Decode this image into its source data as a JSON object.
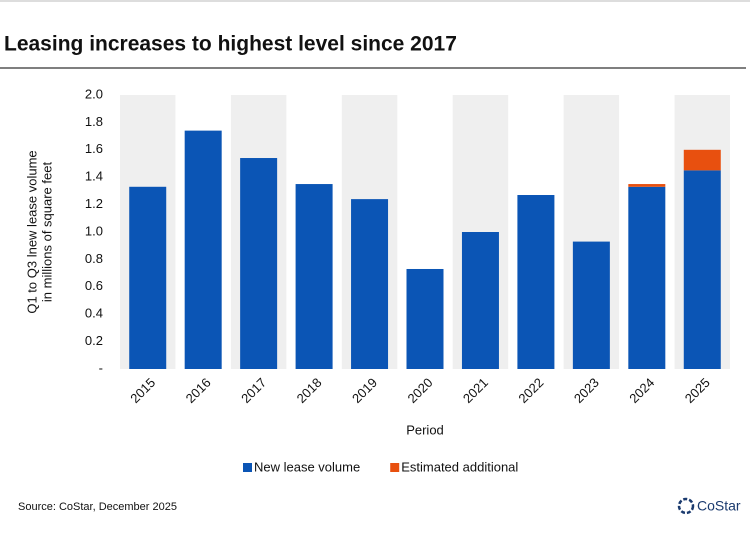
{
  "chart_data": {
    "type": "stacked_bar",
    "title": "Leasing increases to highest level since 2017",
    "y_label": [
      "Q1 to Q3 lnew lease volume",
      "in millions of square feet"
    ],
    "x_label": "Period",
    "source": "Source: CoStar, December 2025",
    "logo": "CoStar",
    "categories": [
      "2015",
      "2016",
      "2017",
      "2018",
      "2019",
      "2020",
      "2021",
      "2022",
      "2023",
      "2024",
      "2025"
    ],
    "series": [
      {
        "name": "New lease volume",
        "color": "#0b55b5",
        "values": [
          1.33,
          1.74,
          1.54,
          1.35,
          1.24,
          0.73,
          1.0,
          1.27,
          0.93,
          1.33,
          1.45
        ]
      },
      {
        "name": "Estimated additional",
        "color": "#e8500f",
        "values": [
          null,
          null,
          null,
          null,
          null,
          null,
          null,
          null,
          null,
          0.02,
          0.15
        ]
      }
    ],
    "ylim": [
      0,
      2
    ],
    "yticks": [
      {
        "value": 0,
        "label": "-"
      },
      0.2,
      0.4,
      0.6,
      0.8,
      {
        "value": 1,
        "label": "1.0"
      },
      1.2,
      1.4,
      1.6,
      1.8,
      {
        "value": 2,
        "label": "2.0"
      }
    ],
    "band_color": "#efefef",
    "legend": "bottom"
  }
}
